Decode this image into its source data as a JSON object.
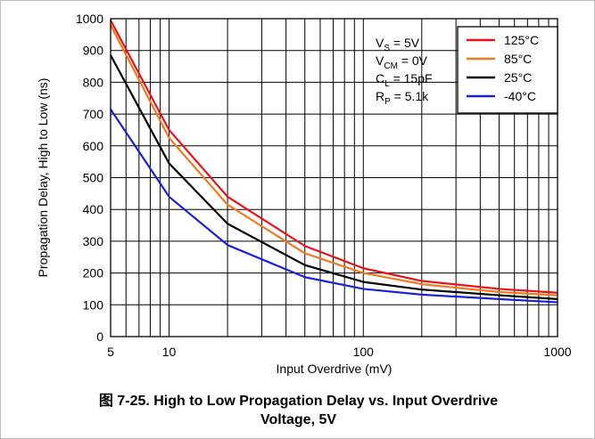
{
  "figure": {
    "caption_line1": "图 7-25. High to Low Propagation Delay vs. Input Overdrive",
    "caption_line2": "Voltage, 5V"
  },
  "chart_data": {
    "type": "line",
    "xlabel": "Input Overdrive (mV)",
    "ylabel": "Propagation Delay, High to Low (ns)",
    "xscale": "log",
    "xlim": [
      5,
      1000
    ],
    "ylim": [
      0,
      1000
    ],
    "x_tick_labels": [
      "5",
      "10",
      "100",
      "1000"
    ],
    "y_tick_labels": [
      "0",
      "100",
      "200",
      "300",
      "400",
      "500",
      "600",
      "700",
      "800",
      "900",
      "1000"
    ],
    "grid": true,
    "legend_position": "top-right",
    "conditions": [
      {
        "sym": "V",
        "sub": "S",
        "text": " = 5V"
      },
      {
        "sym": "V",
        "sub": "CM",
        "text": " = 0V"
      },
      {
        "sym": "C",
        "sub": "L",
        "text": " = 15pF"
      },
      {
        "sym": "R",
        "sub": "P",
        "text": " = 5.1k"
      }
    ],
    "series": [
      {
        "name": "125°C",
        "color": "#e8131b",
        "x": [
          5,
          10,
          20,
          50,
          100,
          200,
          500,
          1000
        ],
        "y": [
          995,
          650,
          440,
          285,
          215,
          175,
          150,
          138
        ]
      },
      {
        "name": "85°C",
        "color": "#f07a1e",
        "x": [
          5,
          10,
          20,
          50,
          100,
          200,
          500,
          1000
        ],
        "y": [
          980,
          625,
          415,
          262,
          200,
          165,
          140,
          130
        ]
      },
      {
        "name": "25°C",
        "color": "#000000",
        "x": [
          5,
          10,
          20,
          50,
          100,
          200,
          500,
          1000
        ],
        "y": [
          885,
          545,
          355,
          225,
          172,
          148,
          130,
          118
        ]
      },
      {
        "name": "-40°C",
        "color": "#1a21d9",
        "x": [
          5,
          10,
          20,
          50,
          100,
          200,
          500,
          1000
        ],
        "y": [
          715,
          440,
          288,
          187,
          150,
          132,
          118,
          108
        ]
      }
    ]
  }
}
